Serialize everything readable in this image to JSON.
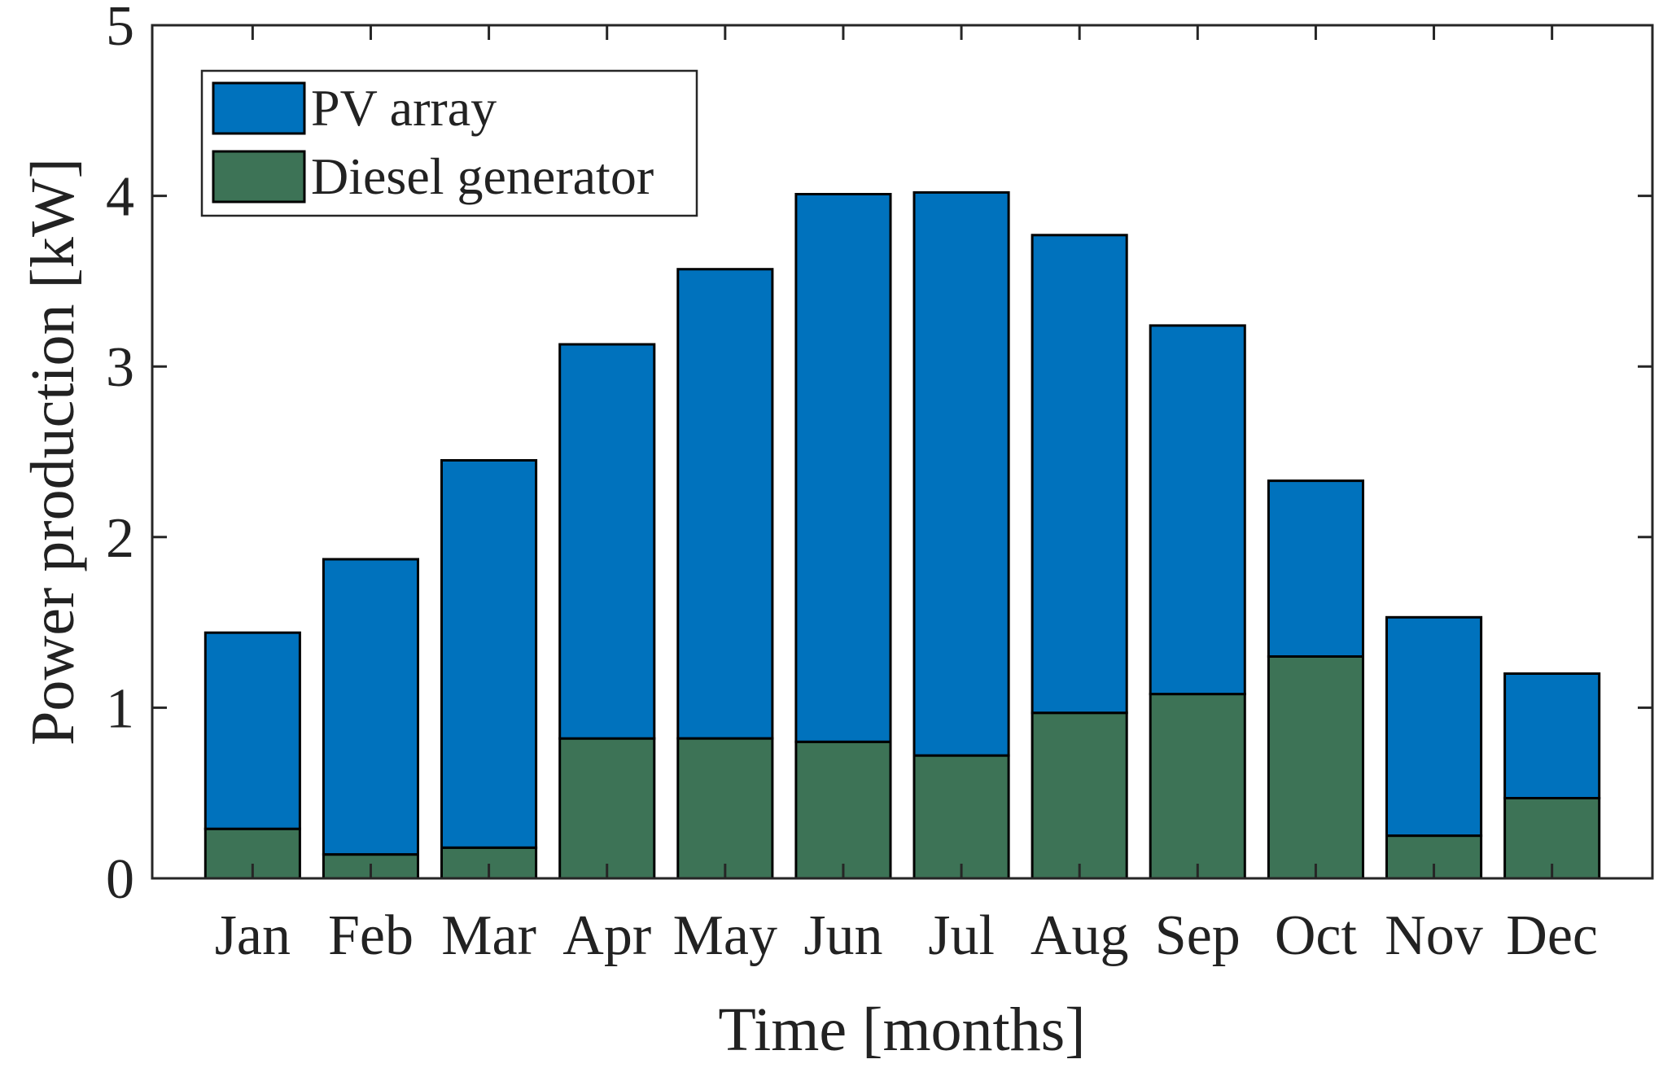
{
  "chart_data": {
    "type": "bar",
    "stacked": true,
    "title": "",
    "xlabel": "Time [months]",
    "ylabel": "Power production [kW]",
    "ylim": [
      0,
      5
    ],
    "yticks": [
      0,
      1,
      2,
      3,
      4,
      5
    ],
    "grid": false,
    "legend_position": "top-left",
    "categories": [
      "Jan",
      "Feb",
      "Mar",
      "Apr",
      "May",
      "Jun",
      "Jul",
      "Aug",
      "Sep",
      "Oct",
      "Nov",
      "Dec"
    ],
    "series": [
      {
        "name": "Diesel generator",
        "color": "#3d7356",
        "values": [
          0.29,
          0.14,
          0.18,
          0.82,
          0.82,
          0.8,
          0.72,
          0.97,
          1.08,
          1.3,
          0.25,
          0.47
        ]
      },
      {
        "name": "PV array",
        "color": "#0072bd",
        "values": [
          1.15,
          1.73,
          2.27,
          2.31,
          2.75,
          3.21,
          3.3,
          2.8,
          2.16,
          1.03,
          1.28,
          0.73
        ]
      }
    ],
    "totals": [
      1.44,
      1.87,
      2.45,
      3.13,
      3.57,
      4.01,
      4.02,
      3.77,
      3.24,
      2.33,
      1.53,
      1.2
    ],
    "legend": [
      {
        "label": "PV array",
        "color": "#0072bd"
      },
      {
        "label": "Diesel generator",
        "color": "#3d7356"
      }
    ]
  }
}
